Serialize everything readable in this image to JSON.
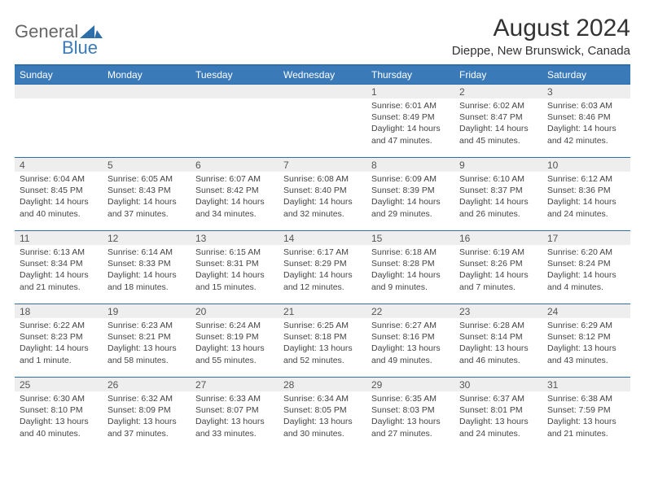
{
  "logo": {
    "general": "General",
    "blue": "Blue"
  },
  "title": "August 2024",
  "location": "Dieppe, New Brunswick, Canada",
  "colors": {
    "header_bg": "#3a7ab8",
    "header_text": "#ffffff",
    "daynum_bg": "#eeeeee",
    "week_border": "#2d6fa8",
    "body_text": "#444444"
  },
  "weekdays": [
    "Sunday",
    "Monday",
    "Tuesday",
    "Wednesday",
    "Thursday",
    "Friday",
    "Saturday"
  ],
  "weeks": [
    [
      null,
      null,
      null,
      null,
      {
        "n": "1",
        "sr": "6:01 AM",
        "ss": "8:49 PM",
        "dl": "14 hours and 47 minutes."
      },
      {
        "n": "2",
        "sr": "6:02 AM",
        "ss": "8:47 PM",
        "dl": "14 hours and 45 minutes."
      },
      {
        "n": "3",
        "sr": "6:03 AM",
        "ss": "8:46 PM",
        "dl": "14 hours and 42 minutes."
      }
    ],
    [
      {
        "n": "4",
        "sr": "6:04 AM",
        "ss": "8:45 PM",
        "dl": "14 hours and 40 minutes."
      },
      {
        "n": "5",
        "sr": "6:05 AM",
        "ss": "8:43 PM",
        "dl": "14 hours and 37 minutes."
      },
      {
        "n": "6",
        "sr": "6:07 AM",
        "ss": "8:42 PM",
        "dl": "14 hours and 34 minutes."
      },
      {
        "n": "7",
        "sr": "6:08 AM",
        "ss": "8:40 PM",
        "dl": "14 hours and 32 minutes."
      },
      {
        "n": "8",
        "sr": "6:09 AM",
        "ss": "8:39 PM",
        "dl": "14 hours and 29 minutes."
      },
      {
        "n": "9",
        "sr": "6:10 AM",
        "ss": "8:37 PM",
        "dl": "14 hours and 26 minutes."
      },
      {
        "n": "10",
        "sr": "6:12 AM",
        "ss": "8:36 PM",
        "dl": "14 hours and 24 minutes."
      }
    ],
    [
      {
        "n": "11",
        "sr": "6:13 AM",
        "ss": "8:34 PM",
        "dl": "14 hours and 21 minutes."
      },
      {
        "n": "12",
        "sr": "6:14 AM",
        "ss": "8:33 PM",
        "dl": "14 hours and 18 minutes."
      },
      {
        "n": "13",
        "sr": "6:15 AM",
        "ss": "8:31 PM",
        "dl": "14 hours and 15 minutes."
      },
      {
        "n": "14",
        "sr": "6:17 AM",
        "ss": "8:29 PM",
        "dl": "14 hours and 12 minutes."
      },
      {
        "n": "15",
        "sr": "6:18 AM",
        "ss": "8:28 PM",
        "dl": "14 hours and 9 minutes."
      },
      {
        "n": "16",
        "sr": "6:19 AM",
        "ss": "8:26 PM",
        "dl": "14 hours and 7 minutes."
      },
      {
        "n": "17",
        "sr": "6:20 AM",
        "ss": "8:24 PM",
        "dl": "14 hours and 4 minutes."
      }
    ],
    [
      {
        "n": "18",
        "sr": "6:22 AM",
        "ss": "8:23 PM",
        "dl": "14 hours and 1 minute."
      },
      {
        "n": "19",
        "sr": "6:23 AM",
        "ss": "8:21 PM",
        "dl": "13 hours and 58 minutes."
      },
      {
        "n": "20",
        "sr": "6:24 AM",
        "ss": "8:19 PM",
        "dl": "13 hours and 55 minutes."
      },
      {
        "n": "21",
        "sr": "6:25 AM",
        "ss": "8:18 PM",
        "dl": "13 hours and 52 minutes."
      },
      {
        "n": "22",
        "sr": "6:27 AM",
        "ss": "8:16 PM",
        "dl": "13 hours and 49 minutes."
      },
      {
        "n": "23",
        "sr": "6:28 AM",
        "ss": "8:14 PM",
        "dl": "13 hours and 46 minutes."
      },
      {
        "n": "24",
        "sr": "6:29 AM",
        "ss": "8:12 PM",
        "dl": "13 hours and 43 minutes."
      }
    ],
    [
      {
        "n": "25",
        "sr": "6:30 AM",
        "ss": "8:10 PM",
        "dl": "13 hours and 40 minutes."
      },
      {
        "n": "26",
        "sr": "6:32 AM",
        "ss": "8:09 PM",
        "dl": "13 hours and 37 minutes."
      },
      {
        "n": "27",
        "sr": "6:33 AM",
        "ss": "8:07 PM",
        "dl": "13 hours and 33 minutes."
      },
      {
        "n": "28",
        "sr": "6:34 AM",
        "ss": "8:05 PM",
        "dl": "13 hours and 30 minutes."
      },
      {
        "n": "29",
        "sr": "6:35 AM",
        "ss": "8:03 PM",
        "dl": "13 hours and 27 minutes."
      },
      {
        "n": "30",
        "sr": "6:37 AM",
        "ss": "8:01 PM",
        "dl": "13 hours and 24 minutes."
      },
      {
        "n": "31",
        "sr": "6:38 AM",
        "ss": "7:59 PM",
        "dl": "13 hours and 21 minutes."
      }
    ]
  ],
  "labels": {
    "sunrise": "Sunrise: ",
    "sunset": "Sunset: ",
    "daylight": "Daylight: "
  }
}
